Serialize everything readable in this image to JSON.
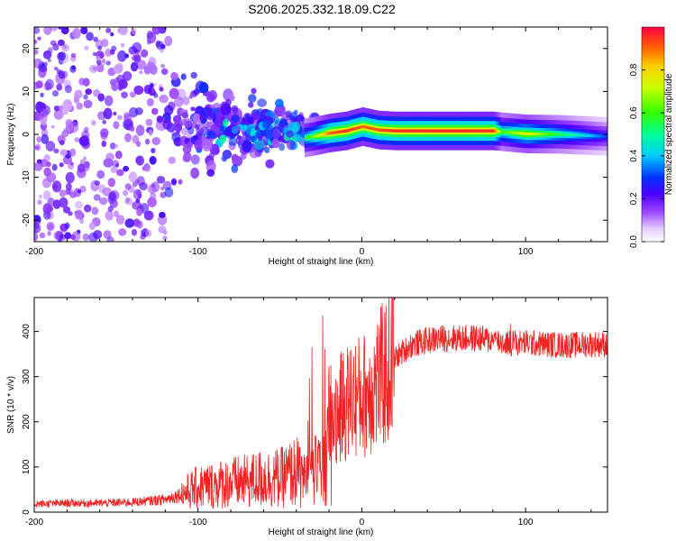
{
  "title": "S206.2025.332.18.09.C22",
  "chart_data": [
    {
      "type": "heatmap",
      "title": "S206.2025.332.18.09.C22",
      "xlabel": "Height of straight line (km)",
      "ylabel": "Frequency (Hz)",
      "xlim": [
        -200,
        150
      ],
      "ylim": [
        -25,
        25
      ],
      "xticks": [
        -200,
        -100,
        0,
        100
      ],
      "yticks": [
        -20,
        -10,
        0,
        10,
        20
      ],
      "colorbar": {
        "label": "Normalized spectral amplitude",
        "range": [
          0,
          1
        ],
        "ticks": [
          0.0,
          0.2,
          0.4,
          0.6,
          0.8
        ]
      },
      "ridge": {
        "x": [
          -35,
          -30,
          -20,
          -10,
          0,
          10,
          20,
          40,
          60,
          80,
          85,
          100,
          120,
          150
        ],
        "freq": [
          -0.8,
          -0.5,
          0.3,
          0.8,
          1.8,
          1.0,
          0.8,
          0.8,
          0.8,
          0.8,
          0.6,
          0.1,
          0.0,
          -0.5
        ],
        "amplitude": [
          0.55,
          0.65,
          0.9,
          0.95,
          0.9,
          0.92,
          0.95,
          0.96,
          0.96,
          0.95,
          0.6,
          0.75,
          0.55,
          0.3
        ]
      }
    },
    {
      "type": "line",
      "xlabel": "Height of straight line (km)",
      "ylabel": "SNR (10 * v/v)",
      "xlim": [
        -200,
        150
      ],
      "ylim": [
        0,
        475
      ],
      "xticks": [
        -200,
        -100,
        0,
        100
      ],
      "yticks": [
        0,
        100,
        200,
        300,
        400
      ],
      "series": [
        {
          "name": "SNR",
          "color": "#ee2222",
          "x": [
            -200,
            -180,
            -160,
            -140,
            -120,
            -110,
            -100,
            -90,
            -80,
            -70,
            -60,
            -50,
            -40,
            -35,
            -30,
            -25,
            -20,
            -15,
            -10,
            -5,
            0,
            5,
            10,
            15,
            20,
            30,
            40,
            50,
            60,
            70,
            80,
            90,
            100,
            110,
            120,
            130,
            140,
            150
          ],
          "y": [
            18,
            20,
            20,
            22,
            28,
            40,
            55,
            60,
            65,
            68,
            75,
            75,
            90,
            80,
            110,
            110,
            210,
            220,
            240,
            255,
            255,
            270,
            290,
            310,
            340,
            370,
            380,
            385,
            385,
            385,
            380,
            375,
            375,
            372,
            370,
            370,
            372,
            372
          ]
        }
      ]
    }
  ]
}
